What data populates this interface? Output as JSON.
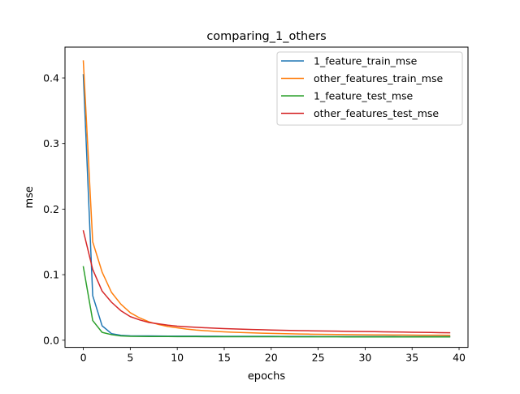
{
  "chart_data": {
    "type": "line",
    "title": "comparing_1_others",
    "xlabel": "epochs",
    "ylabel": "mse",
    "xlim": [
      -1.95,
      40.95
    ],
    "ylim": [
      -0.0109,
      0.4471
    ],
    "xticks": [
      0,
      5,
      10,
      15,
      20,
      25,
      30,
      35,
      40
    ],
    "yticks": [
      0.0,
      0.1,
      0.2,
      0.3,
      0.4
    ],
    "ytick_labels": [
      "0.0",
      "0.1",
      "0.2",
      "0.3",
      "0.4"
    ],
    "grid": false,
    "legend_position": "top-right",
    "x": [
      0,
      1,
      2,
      3,
      4,
      5,
      6,
      7,
      8,
      9,
      10,
      11,
      12,
      13,
      14,
      15,
      16,
      17,
      18,
      19,
      20,
      21,
      22,
      23,
      24,
      25,
      26,
      27,
      28,
      29,
      30,
      31,
      32,
      33,
      34,
      35,
      36,
      37,
      38,
      39
    ],
    "series": [
      {
        "name": "1_feature_train_mse",
        "color": "#1f77b4",
        "values": [
          0.405,
          0.068,
          0.022,
          0.01,
          0.0075,
          0.0068,
          0.0066,
          0.0065,
          0.0064,
          0.0063,
          0.0063,
          0.0062,
          0.0062,
          0.0061,
          0.0061,
          0.006,
          0.006,
          0.006,
          0.0059,
          0.0059,
          0.0059,
          0.0058,
          0.0058,
          0.0058,
          0.0058,
          0.0057,
          0.0057,
          0.0057,
          0.0057,
          0.0056,
          0.0056,
          0.0056,
          0.0056,
          0.0056,
          0.0055,
          0.0055,
          0.0055,
          0.0055,
          0.0055,
          0.0055
        ]
      },
      {
        "name": "other_features_train_mse",
        "color": "#ff7f0e",
        "values": [
          0.426,
          0.15,
          0.104,
          0.073,
          0.055,
          0.042,
          0.034,
          0.028,
          0.024,
          0.021,
          0.019,
          0.017,
          0.0155,
          0.0145,
          0.0135,
          0.0128,
          0.0122,
          0.0117,
          0.0112,
          0.0108,
          0.0104,
          0.0101,
          0.0098,
          0.0095,
          0.0093,
          0.0091,
          0.0089,
          0.0087,
          0.0086,
          0.0084,
          0.0083,
          0.0082,
          0.0081,
          0.008,
          0.0079,
          0.0078,
          0.0077,
          0.0077,
          0.0076,
          0.0075
        ]
      },
      {
        "name": "1_feature_test_mse",
        "color": "#2ca02c",
        "values": [
          0.112,
          0.03,
          0.012,
          0.0085,
          0.0065,
          0.006,
          0.0058,
          0.0057,
          0.0056,
          0.0056,
          0.0055,
          0.0055,
          0.0055,
          0.0054,
          0.0054,
          0.0054,
          0.0054,
          0.0053,
          0.0053,
          0.0053,
          0.0053,
          0.0053,
          0.0052,
          0.0052,
          0.0052,
          0.0052,
          0.0052,
          0.0052,
          0.0051,
          0.0051,
          0.0051,
          0.0051,
          0.0051,
          0.0051,
          0.0051,
          0.005,
          0.005,
          0.005,
          0.005,
          0.005
        ]
      },
      {
        "name": "other_features_test_mse",
        "color": "#d62728",
        "values": [
          0.167,
          0.108,
          0.075,
          0.058,
          0.045,
          0.036,
          0.031,
          0.027,
          0.025,
          0.023,
          0.0215,
          0.0205,
          0.0197,
          0.019,
          0.0184,
          0.0178,
          0.0173,
          0.0168,
          0.0164,
          0.016,
          0.0156,
          0.0153,
          0.015,
          0.0147,
          0.0144,
          0.0142,
          0.014,
          0.0138,
          0.0136,
          0.0134,
          0.0132,
          0.013,
          0.0128,
          0.0126,
          0.0124,
          0.0122,
          0.012,
          0.0118,
          0.0116,
          0.0114
        ]
      }
    ]
  }
}
